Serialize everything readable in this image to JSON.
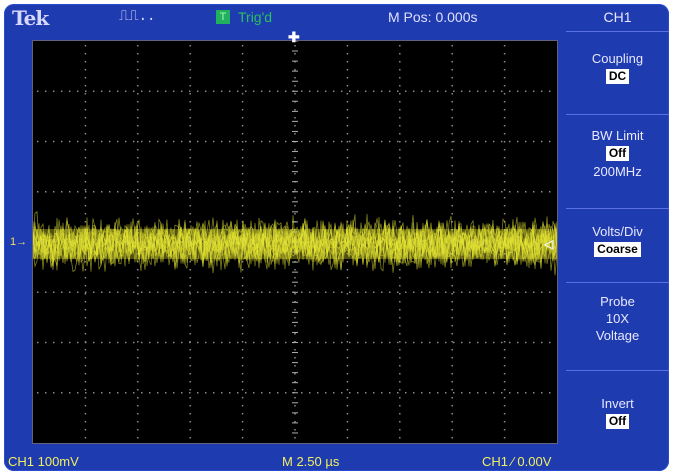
{
  "header": {
    "brand": "Tek",
    "acq_state": "⎍⎍..",
    "trigger_status": "Trig'd",
    "trigger_status_color": "#28c060",
    "m_pos": "M Pos: 0.000s"
  },
  "menu": {
    "title": "CH1",
    "coupling": {
      "label": "Coupling",
      "value": "DC"
    },
    "bw_limit": {
      "label": "BW Limit",
      "value": "Off",
      "sub": "200MHz"
    },
    "volts_div": {
      "label": "Volts/Div",
      "value": "Coarse"
    },
    "probe": {
      "label": "Probe",
      "line2": "10X",
      "line3": "Voltage"
    },
    "invert": {
      "label": "Invert",
      "value": "Off"
    }
  },
  "status": {
    "ch_scale": "CH1  100mV",
    "timebase": "M 2.50 µs",
    "trigger": "CH1  ⁄  0.00V"
  },
  "markers": {
    "ground": "1→",
    "trig_level": "◁",
    "trig_pos": "✚"
  },
  "colors": {
    "bezel": "#1f3bb0",
    "trace": "#e6e633",
    "status_text": "#f0f060"
  }
}
